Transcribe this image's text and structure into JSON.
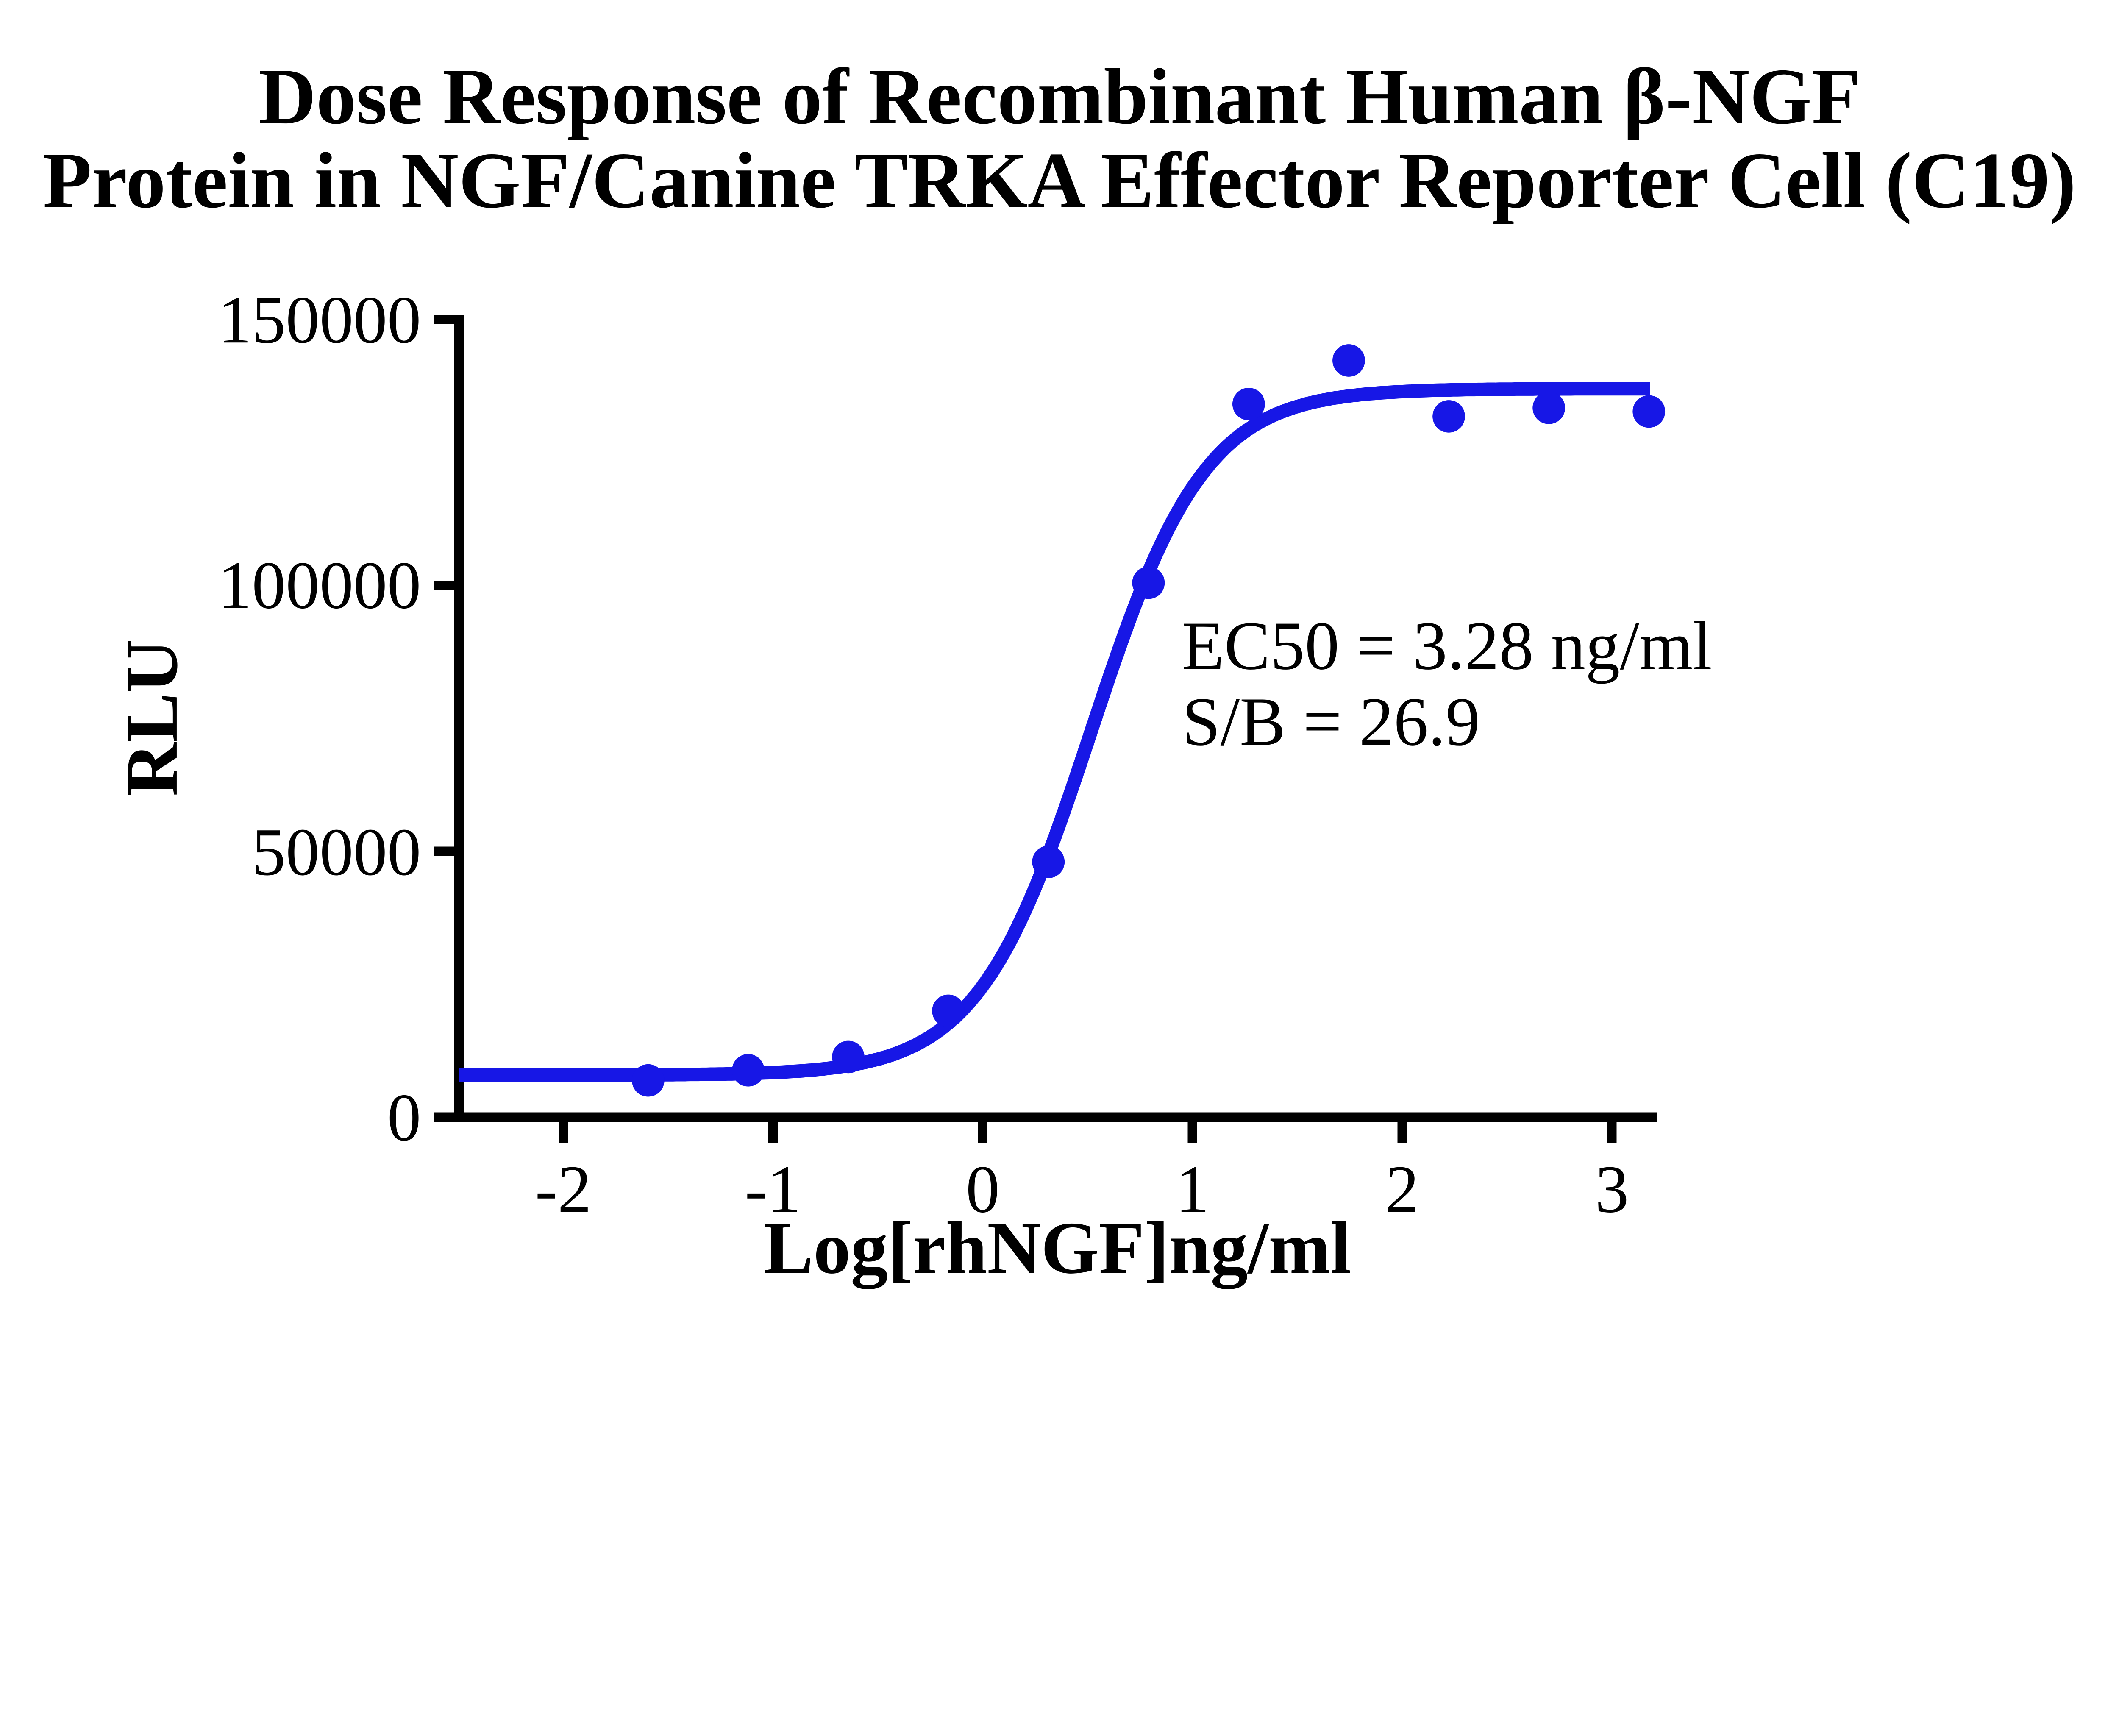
{
  "title": {
    "line1": "Dose Response of Recombinant Human β-NGF",
    "line2": "Protein in NGF/Canine TRKA Effector Reporter Cell (C19)"
  },
  "annotation": {
    "line1": "EC50 = 3.28 ng/ml",
    "line2": "S/B = 26.9"
  },
  "colors": {
    "curve": "#1717E6",
    "axis": "#000000",
    "text": "#000000",
    "background": "#FFFFFF"
  },
  "chart_data": {
    "type": "scatter",
    "title": "Dose Response of Recombinant Human β-NGF Protein in NGF/Canine TRKA Effector Reporter Cell (C19)",
    "xlabel": "Log[rhNGF]ng/ml",
    "ylabel": "RLU",
    "xlim": [
      -2.5,
      3.25
    ],
    "ylim": [
      0,
      150000
    ],
    "x_ticks": [
      -2,
      -1,
      0,
      1,
      2,
      3
    ],
    "y_ticks": [
      0,
      50000,
      100000,
      150000
    ],
    "grid": false,
    "legend_position": "none",
    "points": {
      "log_x": [
        -1.595,
        -1.118,
        -0.641,
        -0.164,
        0.313,
        0.79,
        1.268,
        1.745,
        2.222,
        2.699,
        3.176
      ],
      "rlu": [
        6900,
        8800,
        11300,
        20000,
        48000,
        100500,
        134100,
        142300,
        131800,
        133400,
        132700
      ]
    },
    "fit_curve": {
      "model": "4PL sigmoidal",
      "bottom": 7900,
      "top": 137000,
      "log_ec50": 0.516,
      "hill_slope": 1.6,
      "x_start": -2.497,
      "x_end": 3.19
    },
    "annotations": [
      "EC50 = 3.28 ng/ml",
      "S/B = 26.9"
    ],
    "ec50_ng_ml": 3.28,
    "signal_to_background": 26.9
  }
}
